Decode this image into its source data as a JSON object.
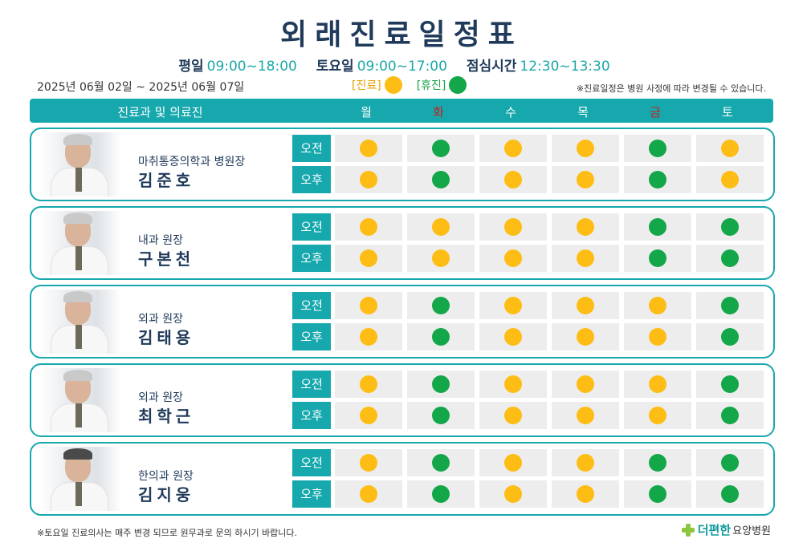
{
  "title": "외래진료일정표",
  "hours": [
    {
      "label": "평일",
      "value": "09:00~18:00"
    },
    {
      "label": "토요일",
      "value": "09:00~17:00"
    },
    {
      "label": "점심시간",
      "value": "12:30~13:30"
    }
  ],
  "date_range": "2025년 06월 02일 ~ 2025년 06월 07일",
  "legend": {
    "open_label": "[진료]",
    "closed_label": "[휴진]",
    "open_color": "#fdbd14",
    "closed_color": "#14a74a"
  },
  "notice_top": "※진료일정은 병원 사정에 따라 변경될 수 있습니다.",
  "header": {
    "left_label": "진료과 및 의료진",
    "days": [
      "월",
      "화",
      "수",
      "목",
      "금",
      "토"
    ],
    "red_days": [
      1,
      4
    ]
  },
  "sessions": {
    "am": "오전",
    "pm": "오후"
  },
  "doctors": [
    {
      "dept": "마취통증의학과 병원장",
      "name": "김준호",
      "hair": "light",
      "am": [
        "y",
        "g",
        "y",
        "y",
        "g",
        "y"
      ],
      "pm": [
        "y",
        "g",
        "y",
        "y",
        "g",
        "y"
      ]
    },
    {
      "dept": "내과 원장",
      "name": "구본천",
      "hair": "light",
      "am": [
        "y",
        "y",
        "y",
        "y",
        "g",
        "g"
      ],
      "pm": [
        "y",
        "y",
        "y",
        "y",
        "g",
        "g"
      ]
    },
    {
      "dept": "외과 원장",
      "name": "김태용",
      "hair": "light",
      "am": [
        "y",
        "g",
        "y",
        "y",
        "y",
        "g"
      ],
      "pm": [
        "y",
        "g",
        "y",
        "y",
        "y",
        "g"
      ]
    },
    {
      "dept": "외과 원장",
      "name": "최학근",
      "hair": "light",
      "am": [
        "y",
        "g",
        "y",
        "y",
        "y",
        "g"
      ],
      "pm": [
        "y",
        "g",
        "y",
        "y",
        "y",
        "g"
      ]
    },
    {
      "dept": "한의과 원장",
      "name": "김지웅",
      "hair": "dark",
      "am": [
        "y",
        "g",
        "y",
        "y",
        "g",
        "g"
      ],
      "pm": [
        "y",
        "g",
        "y",
        "y",
        "g",
        "g"
      ]
    }
  ],
  "footer_note": "※토요일 진료의사는 매주 변경 되므로 원무과로 문의 하시기 바랍니다.",
  "logo": {
    "brand": "더편한",
    "sub": "요양병원"
  }
}
